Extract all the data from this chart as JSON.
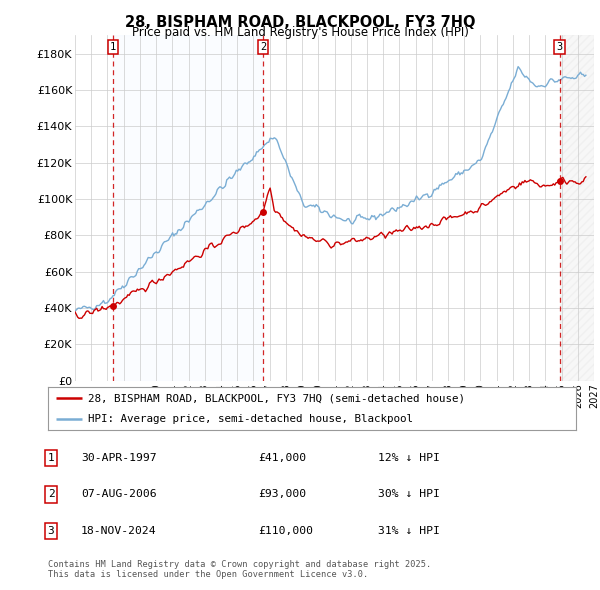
{
  "title": "28, BISPHAM ROAD, BLACKPOOL, FY3 7HQ",
  "subtitle": "Price paid vs. HM Land Registry's House Price Index (HPI)",
  "ylabel_ticks": [
    "£0",
    "£20K",
    "£40K",
    "£60K",
    "£80K",
    "£100K",
    "£120K",
    "£140K",
    "£160K",
    "£180K"
  ],
  "ytick_values": [
    0,
    20000,
    40000,
    60000,
    80000,
    100000,
    120000,
    140000,
    160000,
    180000
  ],
  "ylim": [
    0,
    190000
  ],
  "xlim_start": 1995.0,
  "xlim_end": 2027.0,
  "sale_dates": [
    1997.33,
    2006.6,
    2024.88
  ],
  "sale_prices": [
    41000,
    93000,
    110000
  ],
  "sale_labels": [
    "1",
    "2",
    "3"
  ],
  "line_color_red": "#cc0000",
  "line_color_blue": "#7aadd4",
  "vline_color": "#cc0000",
  "background_color": "#ffffff",
  "grid_color": "#cccccc",
  "shade_color": "#ddeeff",
  "legend_label_red": "28, BISPHAM ROAD, BLACKPOOL, FY3 7HQ (semi-detached house)",
  "legend_label_blue": "HPI: Average price, semi-detached house, Blackpool",
  "table_rows": [
    [
      "1",
      "30-APR-1997",
      "£41,000",
      "12% ↓ HPI"
    ],
    [
      "2",
      "07-AUG-2006",
      "£93,000",
      "30% ↓ HPI"
    ],
    [
      "3",
      "18-NOV-2024",
      "£110,000",
      "31% ↓ HPI"
    ]
  ],
  "footer": "Contains HM Land Registry data © Crown copyright and database right 2025.\nThis data is licensed under the Open Government Licence v3.0."
}
